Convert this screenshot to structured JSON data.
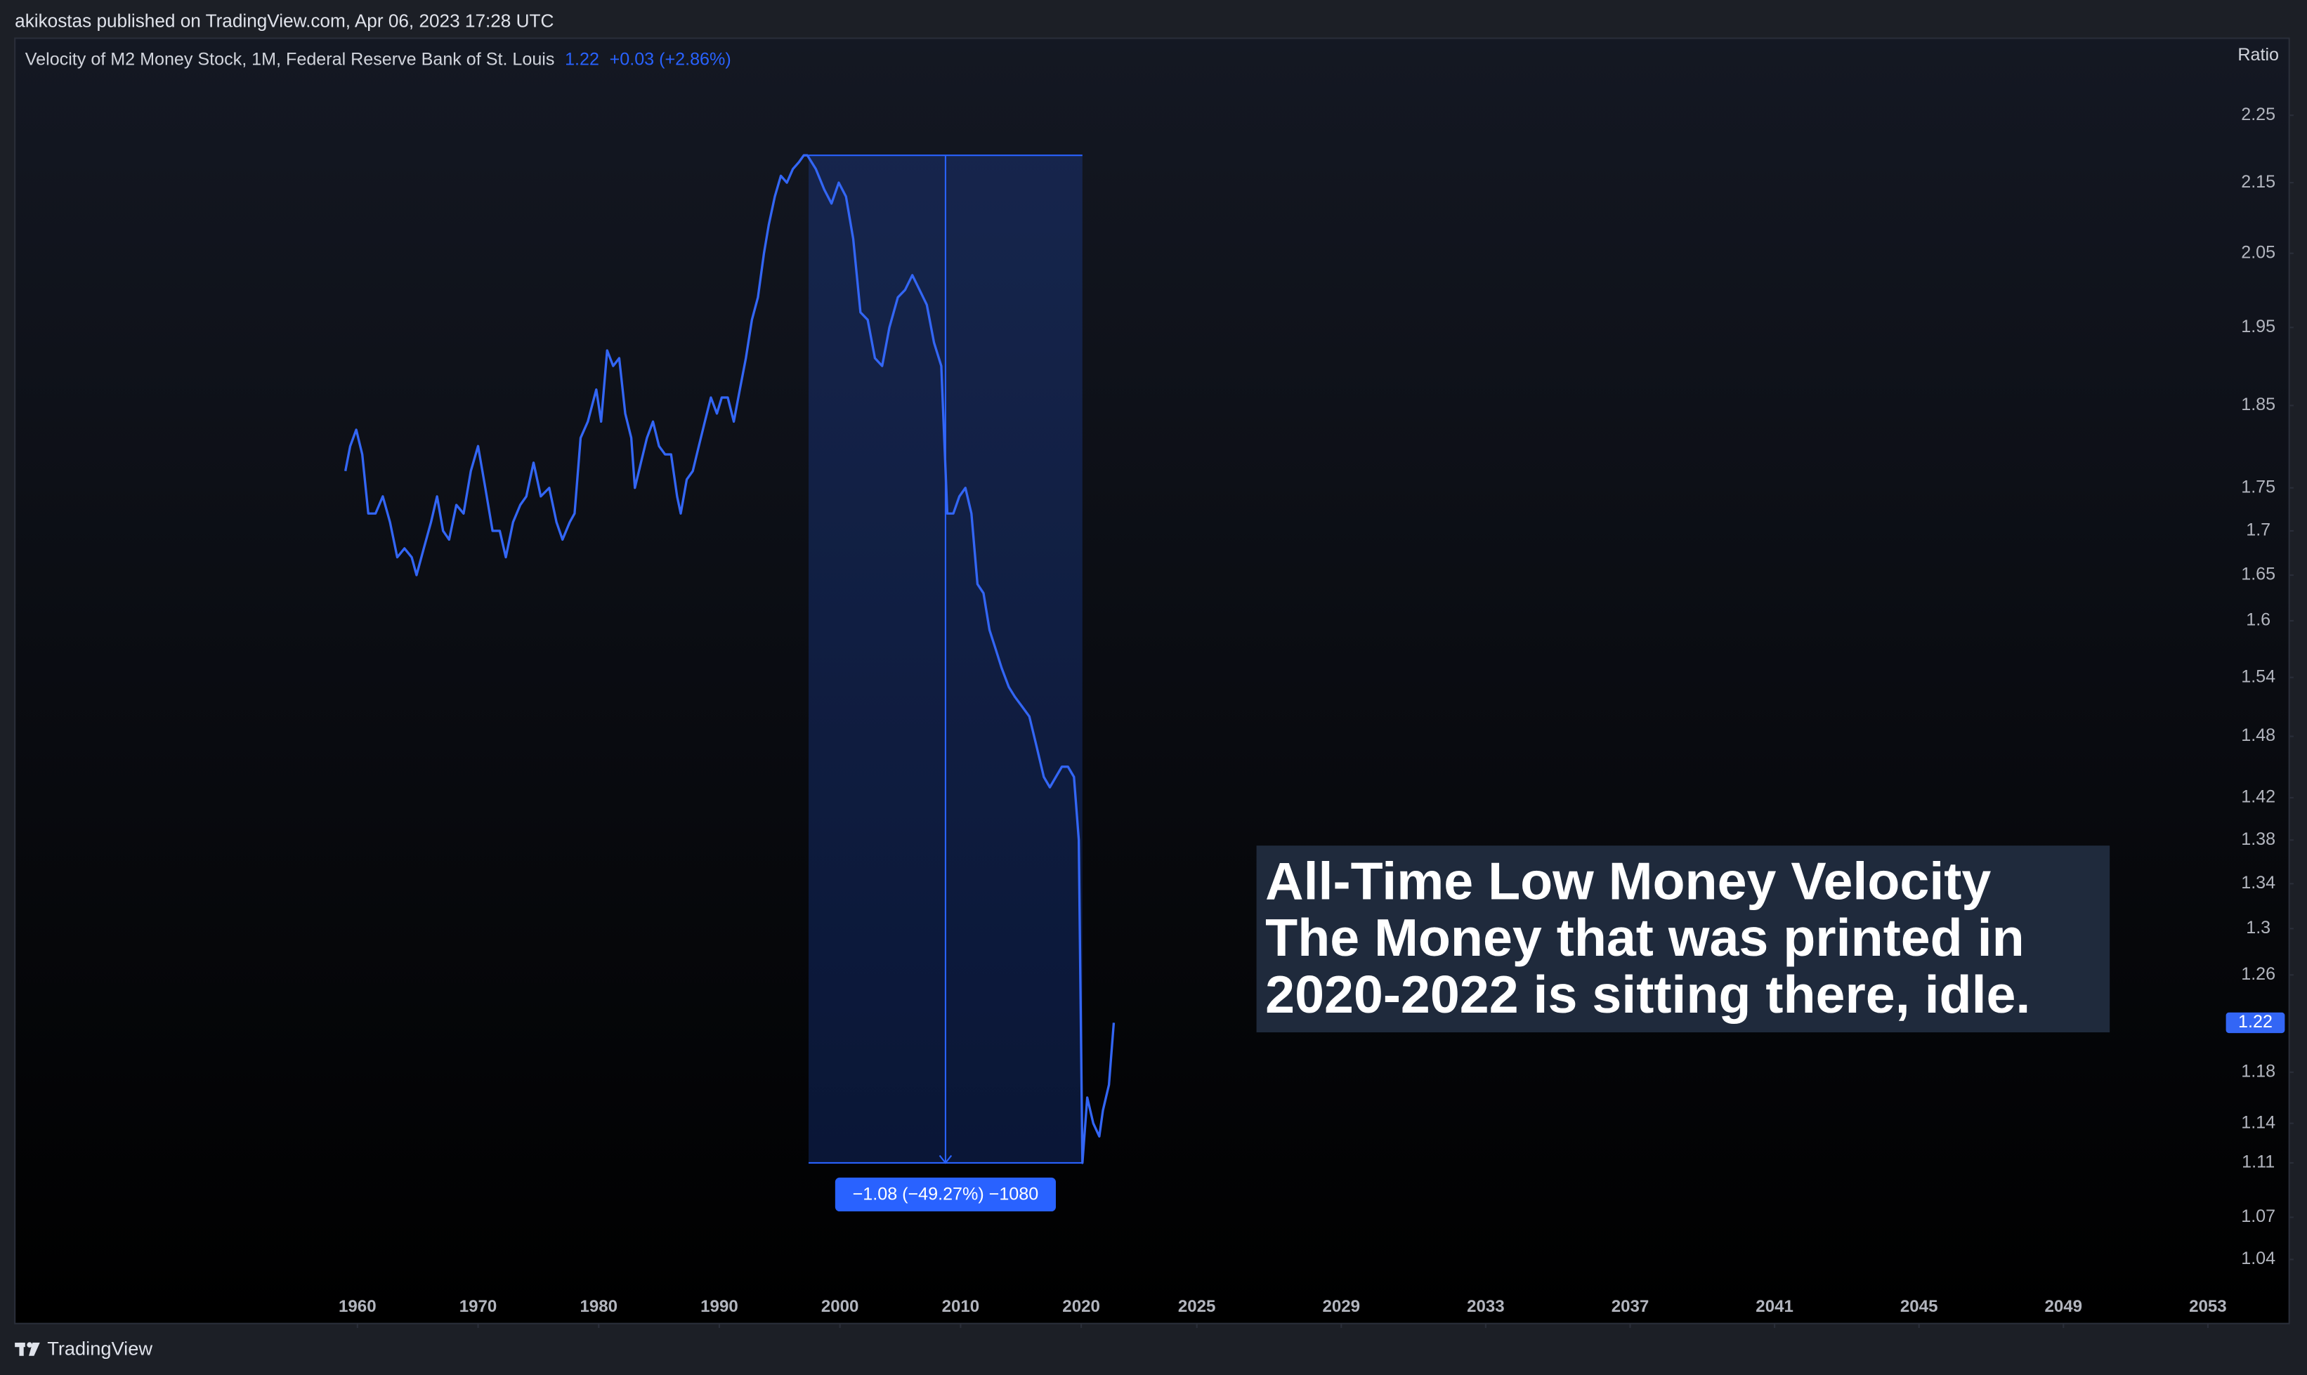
{
  "header": "akikostas published on TradingView.com, Apr 06, 2023 17:28 UTC",
  "footer": "TradingView",
  "chart_data": {
    "type": "line",
    "title": "Velocity of M2 Money Stock, 1M, Federal Reserve Bank of St. Louis",
    "change": "+0.03 (+2.86%)",
    "y_label": "Ratio",
    "log_scale": true,
    "xlim": [
      1931.6,
      2053.5
    ],
    "xticks": [
      1960,
      1970,
      1980,
      1990,
      2000,
      2010,
      2020,
      2025,
      2029,
      2033,
      2037,
      2041,
      2045,
      2049,
      2053
    ],
    "ylim": [
      1.02,
      2.37
    ],
    "yticks": [
      2.25,
      2.15,
      2.05,
      1.95,
      1.85,
      1.75,
      1.7,
      1.65,
      1.6,
      1.54,
      1.48,
      1.42,
      1.38,
      1.34,
      1.3,
      1.26,
      1.18,
      1.14,
      1.11,
      1.07,
      1.04
    ],
    "series": [
      {
        "name": "Velocity of M2 Money Stock",
        "color": "#3366f5",
        "x": [
          1959.0,
          1959.4,
          1959.9,
          1960.4,
          1960.9,
          1961.5,
          1962.1,
          1962.7,
          1963.3,
          1963.9,
          1964.5,
          1964.9,
          1965.5,
          1966.1,
          1966.6,
          1967.1,
          1967.6,
          1968.2,
          1968.8,
          1969.4,
          1970.0,
          1970.6,
          1971.2,
          1971.8,
          1972.3,
          1972.9,
          1973.5,
          1974.0,
          1974.6,
          1975.2,
          1975.9,
          1976.5,
          1977.0,
          1977.6,
          1978.0,
          1978.5,
          1979.1,
          1979.8,
          1980.2,
          1980.7,
          1981.2,
          1981.7,
          1982.2,
          1982.7,
          1983.0,
          1983.5,
          1984.0,
          1984.5,
          1985.0,
          1985.5,
          1986.0,
          1986.5,
          1986.8,
          1987.3,
          1987.8,
          1988.3,
          1988.8,
          1989.3,
          1989.8,
          1990.2,
          1990.7,
          1991.2,
          1991.7,
          1992.2,
          1992.7,
          1993.2,
          1993.7,
          1994.1,
          1994.6,
          1995.1,
          1995.6,
          1996.1,
          1996.6,
          1997.0,
          1997.3,
          1998.0,
          1998.7,
          1999.3,
          1999.9,
          2000.5,
          2001.1,
          2001.7,
          2002.3,
          2002.9,
          2003.5,
          2004.1,
          2004.8,
          2005.4,
          2006.0,
          2006.6,
          2007.2,
          2007.8,
          2008.4,
          2008.9,
          2009.4,
          2009.9,
          2010.4,
          2010.9,
          2011.4,
          2011.9,
          2012.4,
          2012.9,
          2013.4,
          2014.0,
          2014.5,
          2015.1,
          2015.7,
          2016.3,
          2016.9,
          2017.4,
          2017.9,
          2018.4,
          2018.9,
          2019.4,
          2019.8,
          2020.1,
          2020.5,
          2021.0,
          2021.5,
          2021.8,
          2022.3,
          2022.7
        ],
        "values": [
          1.77,
          1.8,
          1.82,
          1.79,
          1.72,
          1.72,
          1.74,
          1.71,
          1.67,
          1.68,
          1.67,
          1.65,
          1.68,
          1.71,
          1.74,
          1.7,
          1.69,
          1.73,
          1.72,
          1.77,
          1.8,
          1.75,
          1.7,
          1.7,
          1.67,
          1.71,
          1.73,
          1.74,
          1.78,
          1.74,
          1.75,
          1.71,
          1.69,
          1.71,
          1.72,
          1.81,
          1.83,
          1.87,
          1.83,
          1.92,
          1.9,
          1.91,
          1.84,
          1.81,
          1.75,
          1.78,
          1.81,
          1.83,
          1.8,
          1.79,
          1.79,
          1.74,
          1.72,
          1.76,
          1.77,
          1.8,
          1.83,
          1.86,
          1.84,
          1.86,
          1.86,
          1.83,
          1.87,
          1.91,
          1.96,
          1.99,
          2.05,
          2.09,
          2.13,
          2.16,
          2.15,
          2.17,
          2.18,
          2.19,
          2.19,
          2.17,
          2.14,
          2.12,
          2.15,
          2.13,
          2.07,
          1.97,
          1.96,
          1.91,
          1.9,
          1.95,
          1.99,
          2.0,
          2.02,
          2.0,
          1.98,
          1.93,
          1.9,
          1.72,
          1.72,
          1.74,
          1.75,
          1.72,
          1.64,
          1.63,
          1.59,
          1.57,
          1.55,
          1.53,
          1.52,
          1.51,
          1.5,
          1.47,
          1.44,
          1.43,
          1.44,
          1.45,
          1.45,
          1.44,
          1.38,
          1.11,
          1.16,
          1.14,
          1.13,
          1.15,
          1.17,
          1.22
        ]
      }
    ],
    "measure": {
      "x": [
        1997.4,
        2020.1
      ],
      "y": [
        2.19,
        1.11
      ],
      "label": "−1.08 (−49.27%) −1080"
    },
    "annotation": [
      "All-Time Low Money Velocity",
      "The Money that was printed in",
      "2020-2022 is sitting there, idle."
    ]
  }
}
